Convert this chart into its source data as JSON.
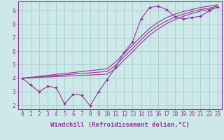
{
  "background_color": "#cce8e8",
  "grid_color": "#aacccc",
  "line_color": "#993399",
  "x_label": "Windchill (Refroidissement éolien,°C)",
  "xlim": [
    -0.5,
    23.5
  ],
  "ylim": [
    1.7,
    9.7
  ],
  "yticks": [
    2,
    3,
    4,
    5,
    6,
    7,
    8,
    9
  ],
  "xticks": [
    0,
    1,
    2,
    3,
    4,
    5,
    6,
    7,
    8,
    9,
    10,
    11,
    12,
    13,
    14,
    15,
    16,
    17,
    18,
    19,
    20,
    21,
    22,
    23
  ],
  "jagged_x": [
    0,
    1,
    2,
    3,
    4,
    5,
    6,
    7,
    8,
    9,
    10,
    11,
    12,
    13,
    14,
    15,
    16,
    17,
    18,
    19,
    20,
    21,
    22,
    23
  ],
  "jagged_y": [
    4.0,
    3.5,
    3.0,
    3.4,
    3.3,
    2.1,
    2.8,
    2.75,
    1.95,
    3.0,
    3.9,
    4.8,
    5.9,
    6.7,
    8.4,
    9.25,
    9.35,
    9.1,
    8.55,
    8.4,
    8.5,
    8.6,
    9.0,
    9.3
  ],
  "smooth1_x": [
    0,
    10,
    11,
    12,
    13,
    14,
    15,
    16,
    17,
    18,
    19,
    20,
    21,
    22,
    23
  ],
  "smooth1_y": [
    4.0,
    4.7,
    5.2,
    5.85,
    6.45,
    7.1,
    7.7,
    8.15,
    8.5,
    8.75,
    8.95,
    9.1,
    9.25,
    9.35,
    9.45
  ],
  "smooth2_x": [
    0,
    10,
    11,
    12,
    13,
    14,
    15,
    16,
    17,
    18,
    19,
    20,
    21,
    22,
    23
  ],
  "smooth2_y": [
    4.0,
    4.5,
    4.95,
    5.6,
    6.2,
    6.85,
    7.45,
    7.9,
    8.25,
    8.55,
    8.75,
    8.95,
    9.1,
    9.2,
    9.35
  ],
  "smooth3_x": [
    0,
    10,
    11,
    12,
    13,
    14,
    15,
    16,
    17,
    18,
    19,
    20,
    21,
    22,
    23
  ],
  "smooth3_y": [
    4.0,
    4.3,
    4.7,
    5.35,
    5.95,
    6.6,
    7.2,
    7.65,
    8.05,
    8.35,
    8.6,
    8.8,
    8.98,
    9.1,
    9.25
  ],
  "marker": "D",
  "markersize": 2.0,
  "linewidth": 0.8,
  "xlabel_fontsize": 6.5,
  "tick_fontsize": 5.5
}
